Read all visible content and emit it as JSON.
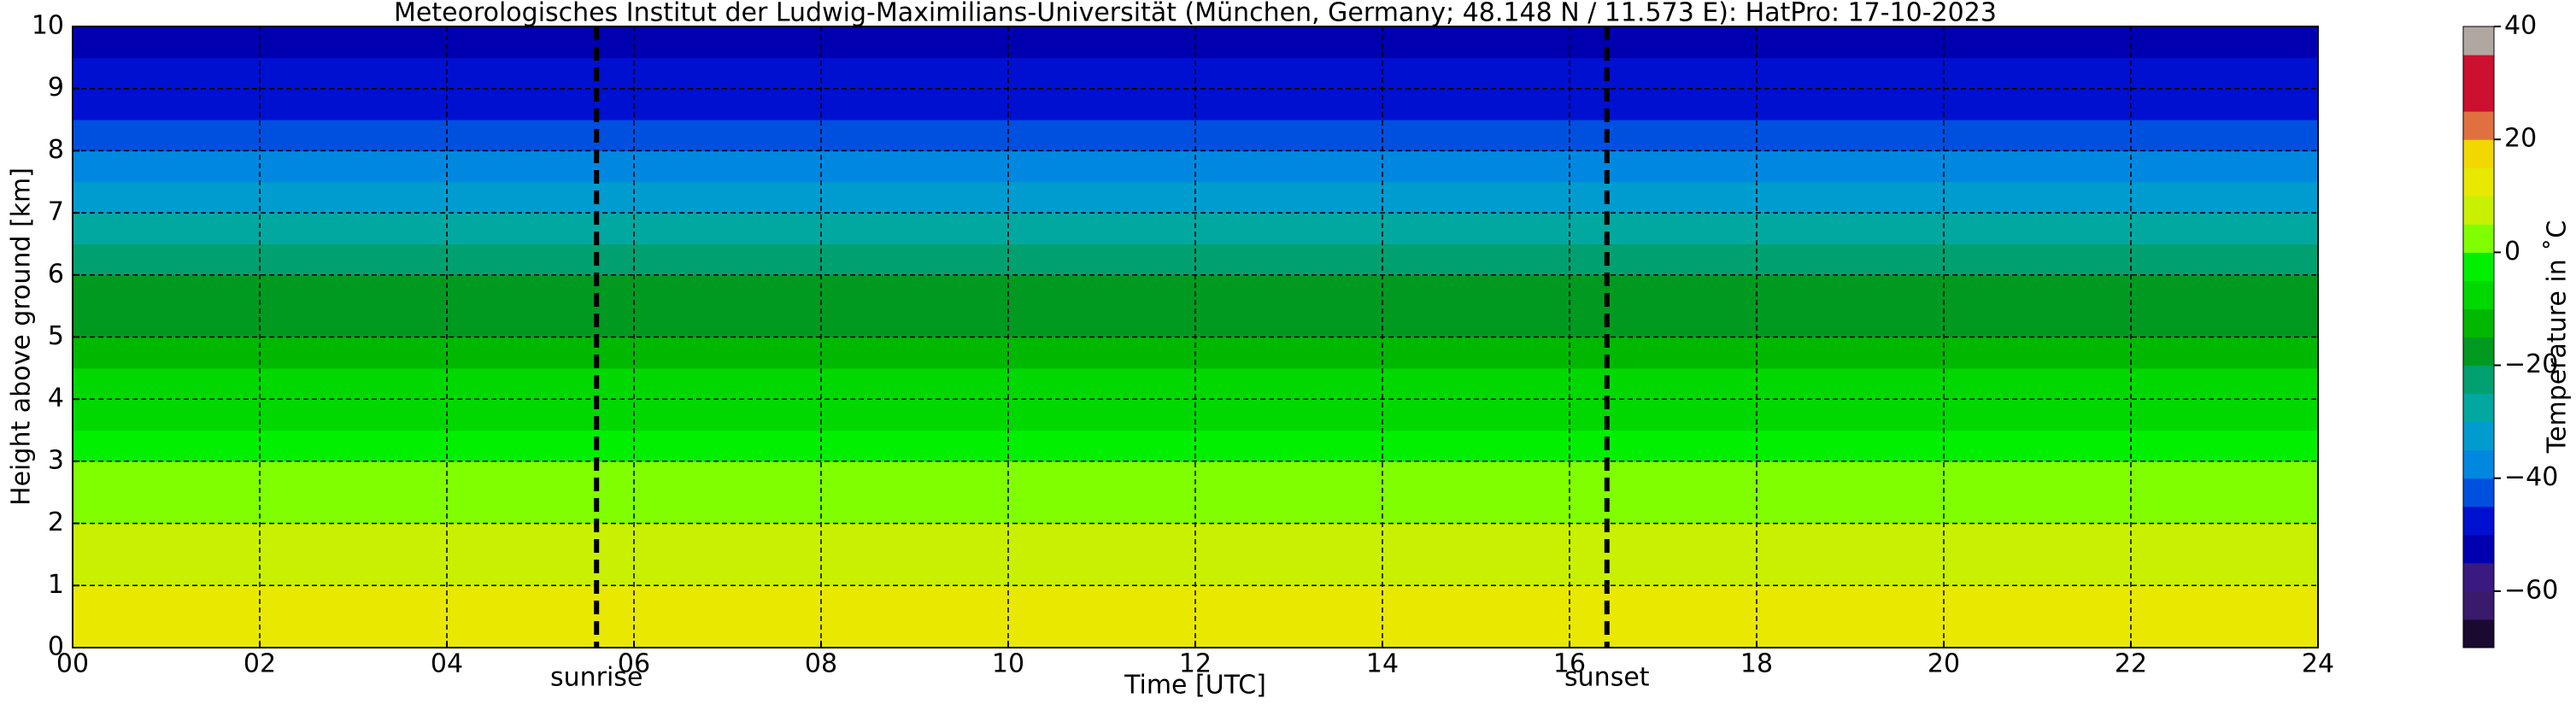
{
  "chart_data": {
    "type": "heatmap",
    "title": "Meteorologisches Institut der Ludwig-Maximilians-Universität (München, Germany; 48.148 N / 11.573 E):    HatPro: 17-10-2023",
    "x_label": "Time [UTC]",
    "y_label": "Height above ground [km]",
    "xlim": [
      0,
      24
    ],
    "ylim": [
      0,
      10
    ],
    "xticks": [
      {
        "value": 0,
        "label": "00"
      },
      {
        "value": 2,
        "label": "02"
      },
      {
        "value": 4,
        "label": "04"
      },
      {
        "value": 6,
        "label": "06"
      },
      {
        "value": 8,
        "label": "08"
      },
      10,
      12,
      14,
      16,
      18,
      20,
      22,
      24
    ],
    "yticks": [
      0,
      1,
      2,
      3,
      4,
      5,
      6,
      7,
      8,
      9,
      10
    ],
    "grid": true,
    "y_bins": [
      0,
      0.5,
      1,
      1.5,
      2,
      2.5,
      3,
      3.5,
      4,
      4.5,
      5,
      5.5,
      6,
      6.5,
      7,
      7.5,
      8,
      8.5,
      9,
      9.5,
      10
    ],
    "values": [
      12,
      11,
      9,
      7,
      4,
      1,
      -2,
      -6,
      -9,
      -13,
      -17,
      -19,
      -22,
      -27,
      -31,
      -36,
      -41,
      -46,
      -50,
      -53
    ],
    "annotations": [
      {
        "x": 5.6,
        "label": "sunrise"
      },
      {
        "x": 16.4,
        "label": "sunset"
      }
    ],
    "colorbar": {
      "label": "Temperature in ˚C",
      "lim": [
        -70,
        40
      ],
      "ticks": [
        {
          "value": -60,
          "label": "−60"
        },
        {
          "value": -40,
          "label": "−40"
        },
        {
          "value": -20,
          "label": "−20"
        },
        0,
        20,
        40
      ],
      "levels": [
        {
          "from": -70,
          "to": -65,
          "color": "#1a0a30"
        },
        {
          "from": -65,
          "to": -60,
          "color": "#3a1a6a"
        },
        {
          "from": -60,
          "to": -55,
          "color": "#3a1a80"
        },
        {
          "from": -55,
          "to": -50,
          "color": "#0000b0"
        },
        {
          "from": -50,
          "to": -45,
          "color": "#0010d0"
        },
        {
          "from": -45,
          "to": -40,
          "color": "#0050e0"
        },
        {
          "from": -40,
          "to": -35,
          "color": "#0088e0"
        },
        {
          "from": -35,
          "to": -30,
          "color": "#009cd0"
        },
        {
          "from": -30,
          "to": -25,
          "color": "#00a8a0"
        },
        {
          "from": -25,
          "to": -20,
          "color": "#00a070"
        },
        {
          "from": -20,
          "to": -15,
          "color": "#009a20"
        },
        {
          "from": -15,
          "to": -10,
          "color": "#00b800"
        },
        {
          "from": -10,
          "to": -5,
          "color": "#00d800"
        },
        {
          "from": -5,
          "to": 0,
          "color": "#00f000"
        },
        {
          "from": 0,
          "to": 5,
          "color": "#80ff00"
        },
        {
          "from": 5,
          "to": 10,
          "color": "#c8f000"
        },
        {
          "from": 10,
          "to": 15,
          "color": "#e8e800"
        },
        {
          "from": 15,
          "to": 20,
          "color": "#f0d800"
        },
        {
          "from": 20,
          "to": 25,
          "color": "#e07040"
        },
        {
          "from": 25,
          "to": 35,
          "color": "#cc1030"
        },
        {
          "from": 35,
          "to": 40,
          "color": "#b0a8a0"
        }
      ]
    }
  }
}
